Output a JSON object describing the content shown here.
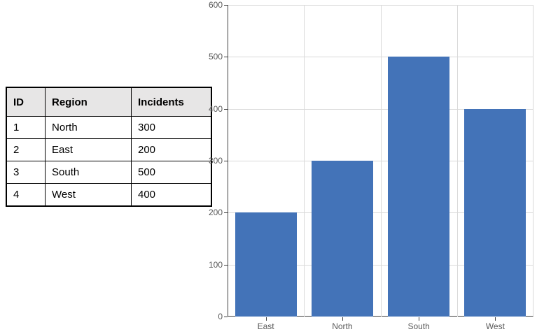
{
  "table": {
    "headers": [
      "ID",
      "Region",
      "Incidents"
    ],
    "rows": [
      {
        "id": "1",
        "region": "North",
        "incidents": "300"
      },
      {
        "id": "2",
        "region": "East",
        "incidents": "200"
      },
      {
        "id": "3",
        "region": "South",
        "incidents": "500"
      },
      {
        "id": "4",
        "region": "West",
        "incidents": "400"
      }
    ]
  },
  "chart_data": {
    "type": "bar",
    "categories": [
      "East",
      "North",
      "South",
      "West"
    ],
    "values": [
      200,
      300,
      500,
      400
    ],
    "title": "",
    "xlabel": "",
    "ylabel": "",
    "ylim": [
      0,
      600
    ],
    "yticks": [
      0,
      100,
      200,
      300,
      400,
      500,
      600
    ],
    "grid": true,
    "legend": false,
    "bar_color": "#4373B8",
    "label_color": "#595959",
    "gridline_color": "#D9D9D9",
    "axis_color": "#404040"
  }
}
